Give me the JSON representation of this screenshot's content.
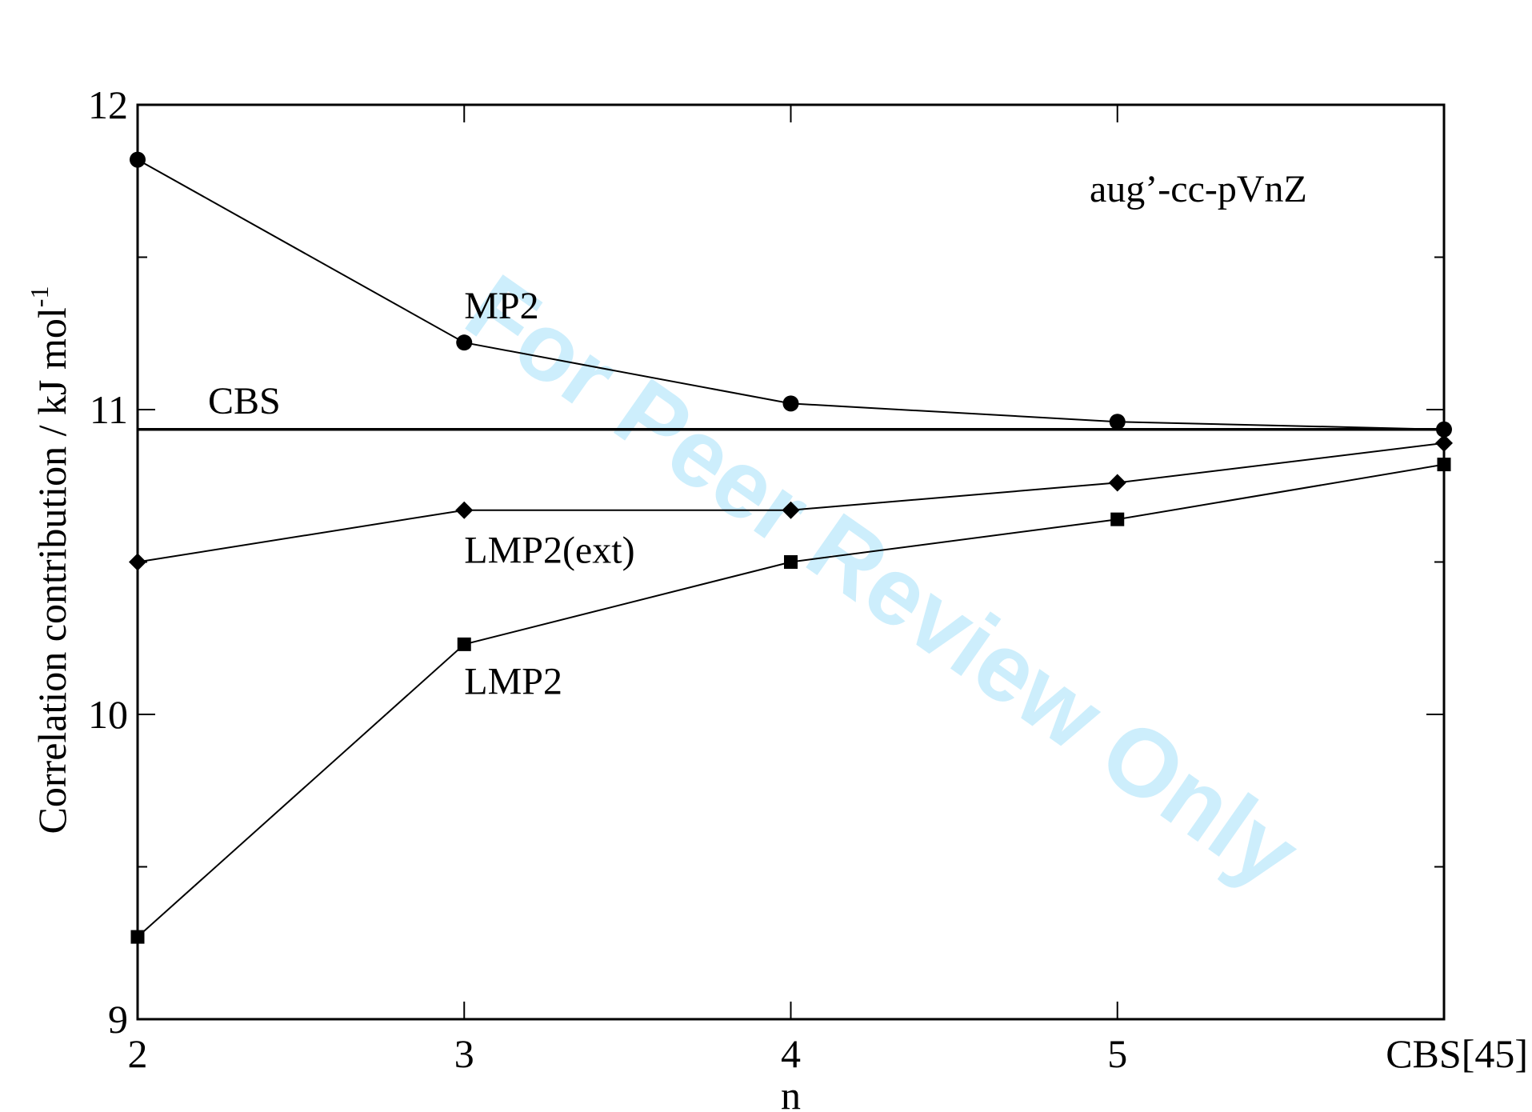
{
  "chart_data": {
    "type": "line",
    "categories": [
      "2",
      "3",
      "4",
      "5",
      "CBS[45]"
    ],
    "xlabel": "n",
    "ylabel": "Correlation contribution / kJ mol",
    "ylabel_sup": "-1",
    "ylim": [
      9,
      12
    ],
    "yticks": [
      {
        "value": 9,
        "label": "9"
      },
      {
        "value": 10,
        "label": "10"
      },
      {
        "value": 11,
        "label": "11"
      },
      {
        "value": 12,
        "label": "12"
      }
    ],
    "series": [
      {
        "name": "MP2",
        "marker": "circle",
        "values": [
          11.82,
          11.22,
          11.02,
          10.96,
          10.935
        ]
      },
      {
        "name": "LMP2(ext)",
        "marker": "diamond",
        "values": [
          10.5,
          10.67,
          10.67,
          10.76,
          10.89
        ]
      },
      {
        "name": "LMP2",
        "marker": "square",
        "values": [
          9.27,
          10.23,
          10.5,
          10.64,
          10.82
        ]
      }
    ],
    "reference_line": {
      "name": "CBS",
      "value": 10.935
    },
    "annotation": "aug’-cc-pVnZ",
    "grid": false,
    "watermark": "For Peer Review Only"
  }
}
